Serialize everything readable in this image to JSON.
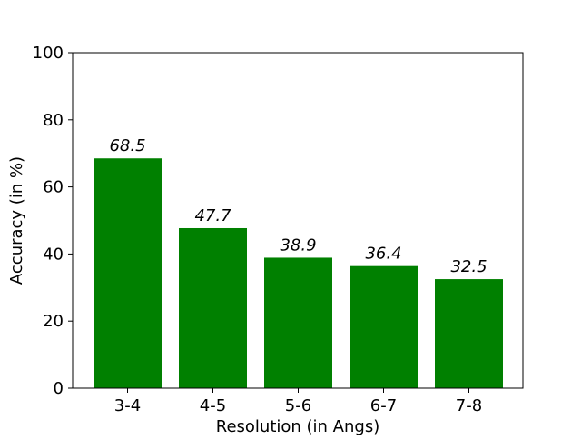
{
  "chart_data": {
    "type": "bar",
    "categories": [
      "3-4",
      "4-5",
      "5-6",
      "6-7",
      "7-8"
    ],
    "values": [
      68.5,
      47.7,
      38.9,
      36.4,
      32.5
    ],
    "data_labels": [
      "68.5",
      "47.7",
      "38.9",
      "36.4",
      "32.5"
    ],
    "xlabel": "Resolution (in Angs)",
    "ylabel": "Accuracy (in %)",
    "ylim": [
      0,
      100
    ],
    "yticks": [
      0,
      20,
      40,
      60,
      80,
      100
    ],
    "grid": false,
    "bar_color": "#008000"
  }
}
